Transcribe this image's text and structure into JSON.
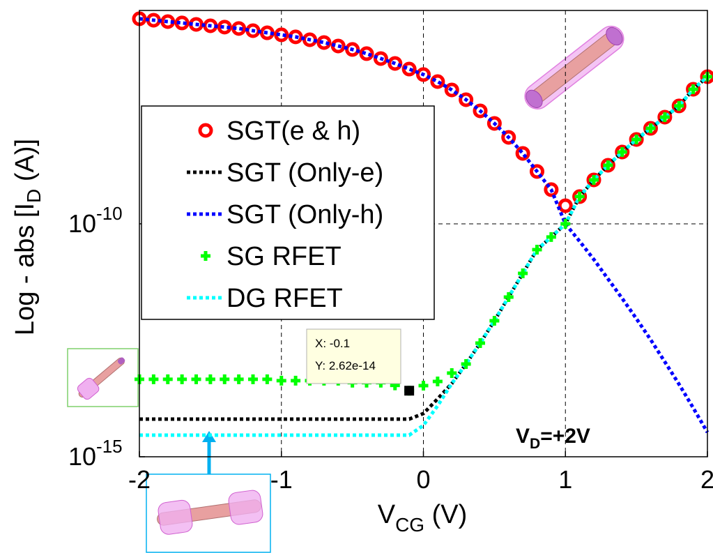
{
  "chart_data": {
    "type": "line",
    "y_label": [
      "Log - abs [I",
      "D",
      " (A)]"
    ],
    "x_label": [
      "V",
      "CG",
      " (V)"
    ],
    "annotation": [
      "V",
      "D",
      "=+2V"
    ],
    "datatip": {
      "x_text": "X: -0.1",
      "y_text": "Y: 2.62e-14",
      "series": 3,
      "index": 19
    },
    "ylog": true,
    "grid": true,
    "xlim": [
      -2,
      2
    ],
    "ylim": [
      1e-15,
      3.8e-06
    ],
    "xticks": [
      -2,
      -1,
      0,
      1,
      2
    ],
    "yticks": [
      {
        "value": 1e-15,
        "label": "10",
        "exponent": "-15"
      },
      {
        "value": 1e-10,
        "label": "10",
        "exponent": "-10"
      }
    ],
    "x": [
      -2,
      -1.9,
      -1.8,
      -1.7,
      -1.6,
      -1.5,
      -1.4,
      -1.3,
      -1.2,
      -1.1,
      -1,
      -0.9,
      -0.8,
      -0.7,
      -0.6,
      -0.5,
      -0.4,
      -0.3,
      -0.2,
      -0.1,
      0,
      0.1,
      0.2,
      0.3,
      0.4,
      0.5,
      0.6,
      0.7,
      0.8,
      0.9,
      1,
      1.1,
      1.2,
      1.3,
      1.4,
      1.5,
      1.6,
      1.7,
      1.8,
      1.9,
      2
    ],
    "series": [
      {
        "name": "SGT(e & h)",
        "color": "#ff0000",
        "style": "circle",
        "values": [
          2.52e-06,
          2.35e-06,
          2.19e-06,
          2.05e-06,
          1.91e-06,
          1.78e-06,
          1.67e-06,
          1.56e-06,
          1.4e-06,
          1.26e-06,
          1.14e-06,
          1.03e-06,
          8.95e-07,
          7.8e-07,
          6.56e-07,
          5.53e-07,
          4.5e-07,
          3.53e-07,
          2.77e-07,
          2.1e-07,
          1.6e-07,
          1.13e-07,
          7.48e-08,
          4.62e-08,
          2.66e-08,
          1.43e-08,
          7.18e-09,
          3.25e-09,
          1.33e-09,
          5.42e-10,
          2.45e-10,
          3.84e-10,
          8.77e-10,
          1.81e-09,
          3.48e-09,
          6.47e-09,
          1.12e-08,
          1.95e-08,
          3.39e-08,
          7.74e-08,
          1.44e-07
        ]
      },
      {
        "name": "SGT (Only-e)",
        "color": "#000000",
        "style": "dotted",
        "values": [
          6.43e-15,
          6.43e-15,
          6.43e-15,
          6.43e-15,
          6.43e-15,
          6.43e-15,
          6.43e-15,
          6.43e-15,
          6.43e-15,
          6.43e-15,
          6.43e-15,
          6.43e-15,
          6.43e-15,
          6.43e-15,
          6.43e-15,
          6.43e-15,
          6.43e-15,
          6.43e-15,
          6.43e-15,
          6.43e-15,
          8.47e-15,
          1.75e-14,
          3.73e-14,
          9.8e-14,
          2.75e-13,
          8.3e-13,
          2.68e-12,
          8.65e-12,
          2.79e-11,
          5.2e-11,
          1e-10,
          3.84e-10,
          8.77e-10,
          1.81e-09,
          3.48e-09,
          6.47e-09,
          1.12e-08,
          1.95e-08,
          3.39e-08,
          7.74e-08,
          1.44e-07
        ]
      },
      {
        "name": "SGT (Only-h)",
        "color": "#0000ff",
        "style": "dotted",
        "values": [
          2.52e-06,
          2.35e-06,
          2.19e-06,
          2.05e-06,
          1.91e-06,
          1.78e-06,
          1.67e-06,
          1.56e-06,
          1.4e-06,
          1.26e-06,
          1.14e-06,
          1.03e-06,
          8.95e-07,
          7.8e-07,
          6.56e-07,
          5.53e-07,
          4.5e-07,
          3.53e-07,
          2.77e-07,
          2.1e-07,
          1.6e-07,
          1.13e-07,
          7.48e-08,
          4.62e-08,
          2.66e-08,
          1.43e-08,
          7.18e-09,
          3.25e-09,
          1.33e-09,
          5.42e-10,
          1e-10,
          4.22e-11,
          1.72e-11,
          6.56e-12,
          2.5e-12,
          9.2e-13,
          3.27e-13,
          1.09e-13,
          3.61e-14,
          1.12e-14,
          3.34e-15
        ]
      },
      {
        "name": "SG RFET",
        "color": "#00ff00",
        "style": "plus",
        "values": [
          4.6e-14,
          4.6e-14,
          4.6e-14,
          4.6e-14,
          4.6e-14,
          4.6e-14,
          4.6e-14,
          4.6e-14,
          4.6e-14,
          4.6e-14,
          4.3e-14,
          4.3e-14,
          4.3e-14,
          4.3e-14,
          4.3e-14,
          3.9e-14,
          3.9e-14,
          3.9e-14,
          3.4e-14,
          2.62e-14,
          3.36e-14,
          4.14e-14,
          6.25e-14,
          9.8e-14,
          2.75e-13,
          8.3e-13,
          2.68e-12,
          8.65e-12,
          2.79e-11,
          5.2e-11,
          1e-10,
          3.84e-10,
          8.77e-10,
          1.81e-09,
          3.48e-09,
          6.47e-09,
          1.12e-08,
          1.95e-08,
          3.39e-08,
          7.74e-08,
          1.44e-07
        ]
      },
      {
        "name": "DG RFET",
        "color": "#00ffff",
        "style": "dotted",
        "values": [
          2.91e-15,
          2.91e-15,
          2.91e-15,
          2.91e-15,
          2.91e-15,
          2.91e-15,
          2.91e-15,
          2.91e-15,
          2.91e-15,
          2.91e-15,
          2.91e-15,
          2.91e-15,
          2.91e-15,
          2.91e-15,
          2.91e-15,
          2.91e-15,
          2.91e-15,
          2.91e-15,
          2.91e-15,
          2.91e-15,
          4.72e-15,
          1.24e-14,
          3.73e-14,
          9.8e-14,
          2.75e-13,
          8.3e-13,
          2.68e-12,
          8.65e-12,
          2.79e-11,
          5.2e-11,
          1e-10,
          3.84e-10,
          8.77e-10,
          1.81e-09,
          3.48e-09,
          6.47e-09,
          1.12e-08,
          1.95e-08,
          3.39e-08,
          7.74e-08,
          1.44e-07
        ]
      }
    ]
  }
}
